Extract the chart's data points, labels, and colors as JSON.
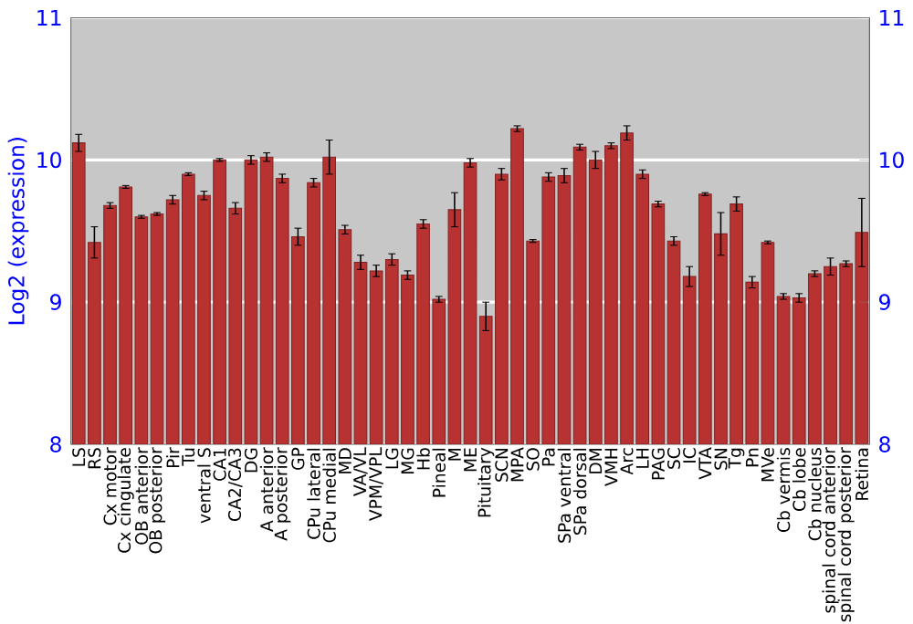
{
  "chart_data": {
    "type": "bar",
    "ylabel": "Log2 (expression)",
    "categories": [
      "LS",
      "RS",
      "Cx motor",
      "Cx cingulate",
      "OB anterior",
      "OB posterior",
      "Pir",
      "Tu",
      "ventral S",
      "CA1",
      "CA2/CA3",
      "DG",
      "A anterior",
      "A posterior",
      "GP",
      "CPu lateral",
      "CPu medial",
      "MD",
      "VA/VL",
      "VPM/VPL",
      "LG",
      "MG",
      "Hb",
      "Pineal",
      "M",
      "ME",
      "Pituitary",
      "SCN",
      "MPA",
      "SO",
      "Pa",
      "SPa ventral",
      "SPa dorsal",
      "DM",
      "VMH",
      "Arc",
      "LH",
      "PAG",
      "SC",
      "IC",
      "VTA",
      "SN",
      "Tg",
      "Pn",
      "MVe",
      "Cb vermis",
      "Cb lobe",
      "Cb nucleus",
      "spinal cord anterior",
      "spinal cord posterior",
      "Retina"
    ],
    "values": [
      10.12,
      9.42,
      9.68,
      9.81,
      9.6,
      9.62,
      9.72,
      9.9,
      9.75,
      10.0,
      9.66,
      10.0,
      10.02,
      9.87,
      9.46,
      9.84,
      10.02,
      9.51,
      9.28,
      9.22,
      9.3,
      9.19,
      9.55,
      9.02,
      9.65,
      9.98,
      8.9,
      9.9,
      10.22,
      9.43,
      9.88,
      9.89,
      10.09,
      10.0,
      10.1,
      10.19,
      9.9,
      9.69,
      9.43,
      9.18,
      9.76,
      9.48,
      9.69,
      9.14,
      9.42,
      9.04,
      9.03,
      9.2,
      9.25,
      9.27,
      9.49
    ],
    "errors": [
      0.06,
      0.11,
      0.02,
      0.01,
      0.01,
      0.01,
      0.03,
      0.01,
      0.03,
      0.01,
      0.04,
      0.03,
      0.03,
      0.03,
      0.06,
      0.03,
      0.12,
      0.03,
      0.05,
      0.04,
      0.04,
      0.03,
      0.03,
      0.02,
      0.12,
      0.03,
      0.1,
      0.04,
      0.02,
      0.01,
      0.03,
      0.05,
      0.02,
      0.06,
      0.02,
      0.05,
      0.03,
      0.02,
      0.03,
      0.07,
      0.01,
      0.15,
      0.05,
      0.04,
      0.01,
      0.02,
      0.03,
      0.02,
      0.06,
      0.02,
      0.24
    ],
    "color": "#b83232",
    "ylim": [
      8,
      11
    ],
    "yticks": [
      8,
      9,
      10,
      11
    ],
    "y2lim": [
      8,
      11
    ],
    "y2ticks": [
      8,
      9,
      10,
      11
    ],
    "grid": "y"
  }
}
